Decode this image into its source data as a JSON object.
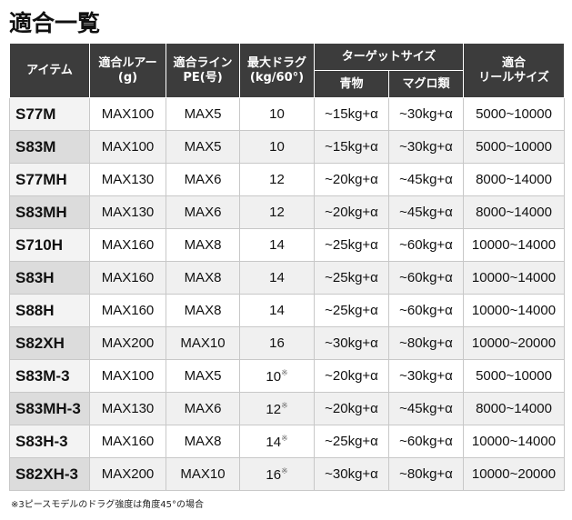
{
  "title": "適合一覧",
  "table": {
    "header": {
      "item": "アイテム",
      "lure": [
        "適合ルアー",
        "(g)"
      ],
      "line": [
        "適合ライン",
        "PE(号)"
      ],
      "drag": [
        "最大ドラグ",
        "(kg/60°)"
      ],
      "target": "ターゲットサイズ",
      "blue": "青物",
      "tuna": "マグロ類",
      "reel": [
        "適合",
        "リールサイズ"
      ]
    },
    "rows": [
      [
        "S77M",
        "MAX100",
        "MAX5",
        "10",
        "~15kg+α",
        "~30kg+α",
        "5000~10000"
      ],
      [
        "S83M",
        "MAX100",
        "MAX5",
        "10",
        "~15kg+α",
        "~30kg+α",
        "5000~10000"
      ],
      [
        "S77MH",
        "MAX130",
        "MAX6",
        "12",
        "~20kg+α",
        "~45kg+α",
        "8000~14000"
      ],
      [
        "S83MH",
        "MAX130",
        "MAX6",
        "12",
        "~20kg+α",
        "~45kg+α",
        "8000~14000"
      ],
      [
        "S710H",
        "MAX160",
        "MAX8",
        "14",
        "~25kg+α",
        "~60kg+α",
        "10000~14000"
      ],
      [
        "S83H",
        "MAX160",
        "MAX8",
        "14",
        "~25kg+α",
        "~60kg+α",
        "10000~14000"
      ],
      [
        "S88H",
        "MAX160",
        "MAX8",
        "14",
        "~25kg+α",
        "~60kg+α",
        "10000~14000"
      ],
      [
        "S82XH",
        "MAX200",
        "MAX10",
        "16",
        "~30kg+α",
        "~80kg+α",
        "10000~20000"
      ],
      [
        "S83M-3",
        "MAX100",
        "MAX5",
        [
          "10",
          "※"
        ],
        "~20kg+α",
        "~30kg+α",
        "5000~10000"
      ],
      [
        "S83MH-3",
        "MAX130",
        "MAX6",
        [
          "12",
          "※"
        ],
        "~20kg+α",
        "~45kg+α",
        "8000~14000"
      ],
      [
        "S83H-3",
        "MAX160",
        "MAX8",
        [
          "14",
          "※"
        ],
        "~25kg+α",
        "~60kg+α",
        "10000~14000"
      ],
      [
        "S82XH-3",
        "MAX200",
        "MAX10",
        [
          "16",
          "※"
        ],
        "~30kg+α",
        "~80kg+α",
        "10000~20000"
      ]
    ]
  },
  "footnote": "※3ピースモデルのドラグ強度は角度45°の場合"
}
